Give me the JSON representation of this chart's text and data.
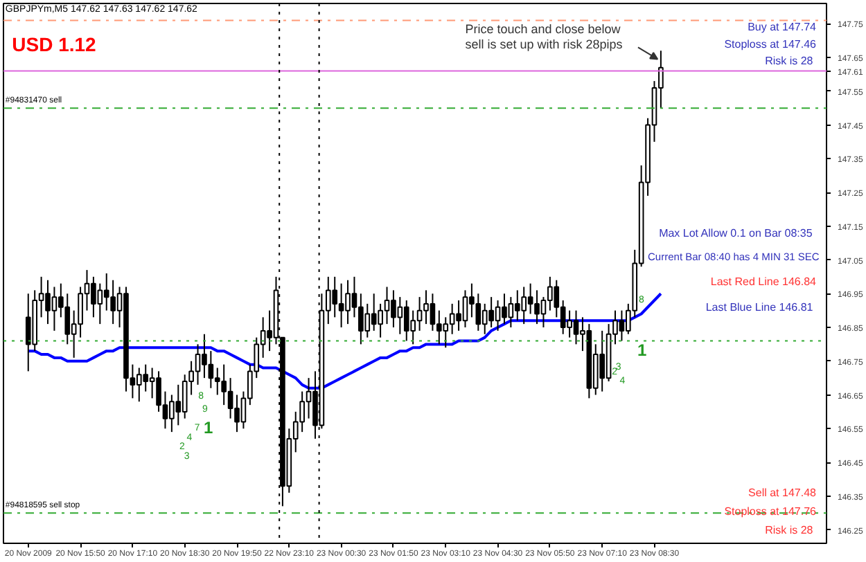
{
  "chart_data": {
    "type": "candlestick",
    "title": "GBPJPYm,M5  147.62 147.63 147.62 147.62",
    "categories": [
      "20 Nov 2009",
      null,
      null,
      null,
      null,
      null,
      null,
      null,
      "20 Nov 15:50",
      null,
      null,
      null,
      null,
      null,
      null,
      null,
      "20 Nov 17:10",
      null,
      null,
      null,
      null,
      null,
      null,
      null,
      "20 Nov 18:30",
      null,
      null,
      null,
      null,
      null,
      null,
      null,
      "20 Nov 19:50",
      null,
      null,
      null,
      null,
      null,
      null,
      null,
      "22 Nov 23:10",
      null,
      null,
      null,
      null,
      null,
      null,
      null,
      "23 Nov 00:30",
      null,
      null,
      null,
      null,
      null,
      null,
      null,
      "23 Nov 01:50",
      null,
      null,
      null,
      null,
      null,
      null,
      null,
      "23 Nov 03:10",
      null,
      null,
      null,
      null,
      null,
      null,
      null,
      "23 Nov 04:30",
      null,
      null,
      null,
      null,
      null,
      null,
      null,
      "23 Nov 05:50",
      null,
      null,
      null,
      null,
      null,
      null,
      null,
      "23 Nov 07:10",
      null,
      null,
      null,
      null,
      null,
      null,
      null,
      "23 Nov 08:30",
      null
    ],
    "color": "#000000",
    "ohlc": [
      [
        146.88,
        146.95,
        146.72,
        146.8
      ],
      [
        146.8,
        146.96,
        146.78,
        146.93
      ],
      [
        146.93,
        147.0,
        146.88,
        146.95
      ],
      [
        146.95,
        146.99,
        146.86,
        146.9
      ],
      [
        146.9,
        146.97,
        146.84,
        146.94
      ],
      [
        146.94,
        146.98,
        146.88,
        146.91
      ],
      [
        146.91,
        146.95,
        146.8,
        146.83
      ],
      [
        146.83,
        146.9,
        146.76,
        146.86
      ],
      [
        146.86,
        146.97,
        146.82,
        146.95
      ],
      [
        146.95,
        147.02,
        146.9,
        146.98
      ],
      [
        146.98,
        147.0,
        146.88,
        146.92
      ],
      [
        146.92,
        146.98,
        146.86,
        146.96
      ],
      [
        146.96,
        147.01,
        146.9,
        146.94
      ],
      [
        146.94,
        146.99,
        146.86,
        146.9
      ],
      [
        146.9,
        146.97,
        146.85,
        146.95
      ],
      [
        146.95,
        146.97,
        146.66,
        146.7
      ],
      [
        146.7,
        146.74,
        146.64,
        146.68
      ],
      [
        146.68,
        146.73,
        146.63,
        146.71
      ],
      [
        146.71,
        146.74,
        146.66,
        146.69
      ],
      [
        146.69,
        146.73,
        146.64,
        146.7
      ],
      [
        146.7,
        146.72,
        146.6,
        146.62
      ],
      [
        146.62,
        146.66,
        146.55,
        146.58
      ],
      [
        146.58,
        146.65,
        146.54,
        146.63
      ],
      [
        146.63,
        146.68,
        146.56,
        146.6
      ],
      [
        146.6,
        146.71,
        146.58,
        146.69
      ],
      [
        146.69,
        146.75,
        146.65,
        146.72
      ],
      [
        146.72,
        146.8,
        146.68,
        146.77
      ],
      [
        146.77,
        146.83,
        146.7,
        146.74
      ],
      [
        146.74,
        146.78,
        146.67,
        146.7
      ],
      [
        146.7,
        146.73,
        146.65,
        146.69
      ],
      [
        146.69,
        146.74,
        146.62,
        146.66
      ],
      [
        146.66,
        146.7,
        146.58,
        146.61
      ],
      [
        146.61,
        146.65,
        146.54,
        146.57
      ],
      [
        146.57,
        146.66,
        146.55,
        146.64
      ],
      [
        146.64,
        146.74,
        146.62,
        146.72
      ],
      [
        146.72,
        146.82,
        146.7,
        146.8
      ],
      [
        146.8,
        146.88,
        146.76,
        146.84
      ],
      [
        146.84,
        146.9,
        146.78,
        146.82
      ],
      [
        146.82,
        147.0,
        146.8,
        146.96
      ],
      [
        146.82,
        146.82,
        146.32,
        146.38
      ],
      [
        146.38,
        146.55,
        146.36,
        146.52
      ],
      [
        146.52,
        146.6,
        146.48,
        146.57
      ],
      [
        146.57,
        146.66,
        146.54,
        146.63
      ],
      [
        146.63,
        146.7,
        146.58,
        146.66
      ],
      [
        146.66,
        146.72,
        146.52,
        146.56
      ],
      [
        146.56,
        146.95,
        146.55,
        146.9
      ],
      [
        146.9,
        147.0,
        146.86,
        146.96
      ],
      [
        146.96,
        147.0,
        146.88,
        146.92
      ],
      [
        146.92,
        146.98,
        146.85,
        146.9
      ],
      [
        146.9,
        146.99,
        146.86,
        146.95
      ],
      [
        146.95,
        147.0,
        146.88,
        146.91
      ],
      [
        146.91,
        146.95,
        146.8,
        146.84
      ],
      [
        146.84,
        146.92,
        146.82,
        146.89
      ],
      [
        146.89,
        146.95,
        146.84,
        146.86
      ],
      [
        146.86,
        146.92,
        146.82,
        146.9
      ],
      [
        146.9,
        146.97,
        146.86,
        146.93
      ],
      [
        146.93,
        146.96,
        146.85,
        146.88
      ],
      [
        146.88,
        146.94,
        146.83,
        146.91
      ],
      [
        146.91,
        146.93,
        146.81,
        146.84
      ],
      [
        146.84,
        146.9,
        146.8,
        146.87
      ],
      [
        146.87,
        146.94,
        146.84,
        146.9
      ],
      [
        146.9,
        146.96,
        146.86,
        146.92
      ],
      [
        146.92,
        146.95,
        146.84,
        146.86
      ],
      [
        146.86,
        146.9,
        146.8,
        146.84
      ],
      [
        146.84,
        146.88,
        146.79,
        146.86
      ],
      [
        146.86,
        146.92,
        146.83,
        146.89
      ],
      [
        146.89,
        146.93,
        146.84,
        146.87
      ],
      [
        146.87,
        146.96,
        146.85,
        146.94
      ],
      [
        146.94,
        146.98,
        146.88,
        146.92
      ],
      [
        146.92,
        146.95,
        146.84,
        146.86
      ],
      [
        146.86,
        146.92,
        146.83,
        146.9
      ],
      [
        146.9,
        146.94,
        146.85,
        146.87
      ],
      [
        146.87,
        146.93,
        146.84,
        146.91
      ],
      [
        146.91,
        146.95,
        146.86,
        146.88
      ],
      [
        146.88,
        146.94,
        146.85,
        146.92
      ],
      [
        146.92,
        146.96,
        146.87,
        146.9
      ],
      [
        146.9,
        146.97,
        146.86,
        146.94
      ],
      [
        146.94,
        146.98,
        146.89,
        146.92
      ],
      [
        146.92,
        146.96,
        146.86,
        146.89
      ],
      [
        146.89,
        146.94,
        146.85,
        146.93
      ],
      [
        146.93,
        147.0,
        146.9,
        146.97
      ],
      [
        146.97,
        146.99,
        146.88,
        146.91
      ],
      [
        146.91,
        146.93,
        146.83,
        146.85
      ],
      [
        146.85,
        146.9,
        146.82,
        146.87
      ],
      [
        146.87,
        146.9,
        146.8,
        146.83
      ],
      [
        146.83,
        146.88,
        146.78,
        146.84
      ],
      [
        146.84,
        146.86,
        146.64,
        146.67
      ],
      [
        146.67,
        146.8,
        146.65,
        146.77
      ],
      [
        146.77,
        146.84,
        146.66,
        146.7
      ],
      [
        146.7,
        146.86,
        146.69,
        146.83
      ],
      [
        146.83,
        146.9,
        146.8,
        146.87
      ],
      [
        146.87,
        146.9,
        146.81,
        146.84
      ],
      [
        146.84,
        146.92,
        146.83,
        146.9
      ],
      [
        146.9,
        147.08,
        146.88,
        147.04
      ],
      [
        147.04,
        147.33,
        147.03,
        147.28
      ],
      [
        147.28,
        147.47,
        147.24,
        147.45
      ],
      [
        147.45,
        147.58,
        147.4,
        147.56
      ],
      [
        147.56,
        147.67,
        147.5,
        147.62
      ]
    ],
    "series": [
      {
        "type": "line",
        "color": "#0000ff",
        "values": [
          146.78,
          146.78,
          146.77,
          146.77,
          146.76,
          146.76,
          146.75,
          146.75,
          146.75,
          146.75,
          146.76,
          146.77,
          146.78,
          146.78,
          146.79,
          146.79,
          146.79,
          146.79,
          146.79,
          146.79,
          146.79,
          146.79,
          146.79,
          146.79,
          146.79,
          146.79,
          146.79,
          146.79,
          146.79,
          146.78,
          146.78,
          146.77,
          146.76,
          146.75,
          146.74,
          146.74,
          146.73,
          146.73,
          146.73,
          146.72,
          146.71,
          146.7,
          146.68,
          146.67,
          146.67,
          146.67,
          146.68,
          146.69,
          146.7,
          146.71,
          146.72,
          146.73,
          146.74,
          146.75,
          146.76,
          146.76,
          146.77,
          146.78,
          146.78,
          146.79,
          146.79,
          146.8,
          146.8,
          146.8,
          146.8,
          146.8,
          146.81,
          146.81,
          146.81,
          146.81,
          146.82,
          146.84,
          146.85,
          146.86,
          146.87,
          146.87,
          146.87,
          146.87,
          146.87,
          146.87,
          146.87,
          146.87,
          146.87,
          146.87,
          146.87,
          146.87,
          146.87,
          146.87,
          146.87,
          146.87,
          146.87,
          146.87,
          146.87,
          146.88,
          146.89,
          146.91,
          146.93,
          146.95
        ]
      }
    ],
    "ylim": [
      146.21,
      147.81
    ],
    "yticks": [
      146.25,
      146.35,
      146.45,
      146.55,
      146.65,
      146.75,
      146.85,
      146.95,
      147.05,
      147.15,
      147.25,
      147.35,
      147.45,
      147.55,
      {
        "value": 147.61,
        "label": "147.61"
      },
      147.65,
      147.75
    ],
    "grid": false,
    "ref_lines": [
      {
        "axis": "y",
        "value": 147.76,
        "label": null,
        "color": "#ff9977",
        "line_style": "dashdot"
      },
      {
        "axis": "y",
        "value": 147.61,
        "label": null,
        "color": "#dd66dd",
        "line_style": "solid"
      },
      {
        "axis": "y",
        "value": 147.5,
        "label": "#94831470 sell",
        "color": "#33aa33",
        "line_style": "dashdot"
      },
      {
        "axis": "y",
        "value": 146.3,
        "label": "#94818595 sell stop",
        "color": "#33aa33",
        "line_style": "dashdot"
      },
      {
        "axis": "y",
        "value": 146.81,
        "label": null,
        "color": "#33aa33",
        "line_style": "dotted"
      }
    ],
    "annotations": [
      "USD  1.12",
      "Price touch and close below",
      "sell is set up with risk 28pips",
      "Buy at 147.74",
      "Stoploss at 147.46",
      "Risk is  28",
      "Max Lot Allow  0.1 on Bar 08:35",
      "Current Bar 08:40 has 4 MIN 31 SEC",
      "Last Red Line 146.84",
      "Last Blue Line  146.81",
      "Sell at 147.48",
      "Stoploss at 147.76",
      "Risk is  28",
      "8",
      "9",
      "7",
      "1",
      "2",
      "4",
      "3",
      "8",
      "1",
      "2",
      "4",
      "3"
    ]
  }
}
